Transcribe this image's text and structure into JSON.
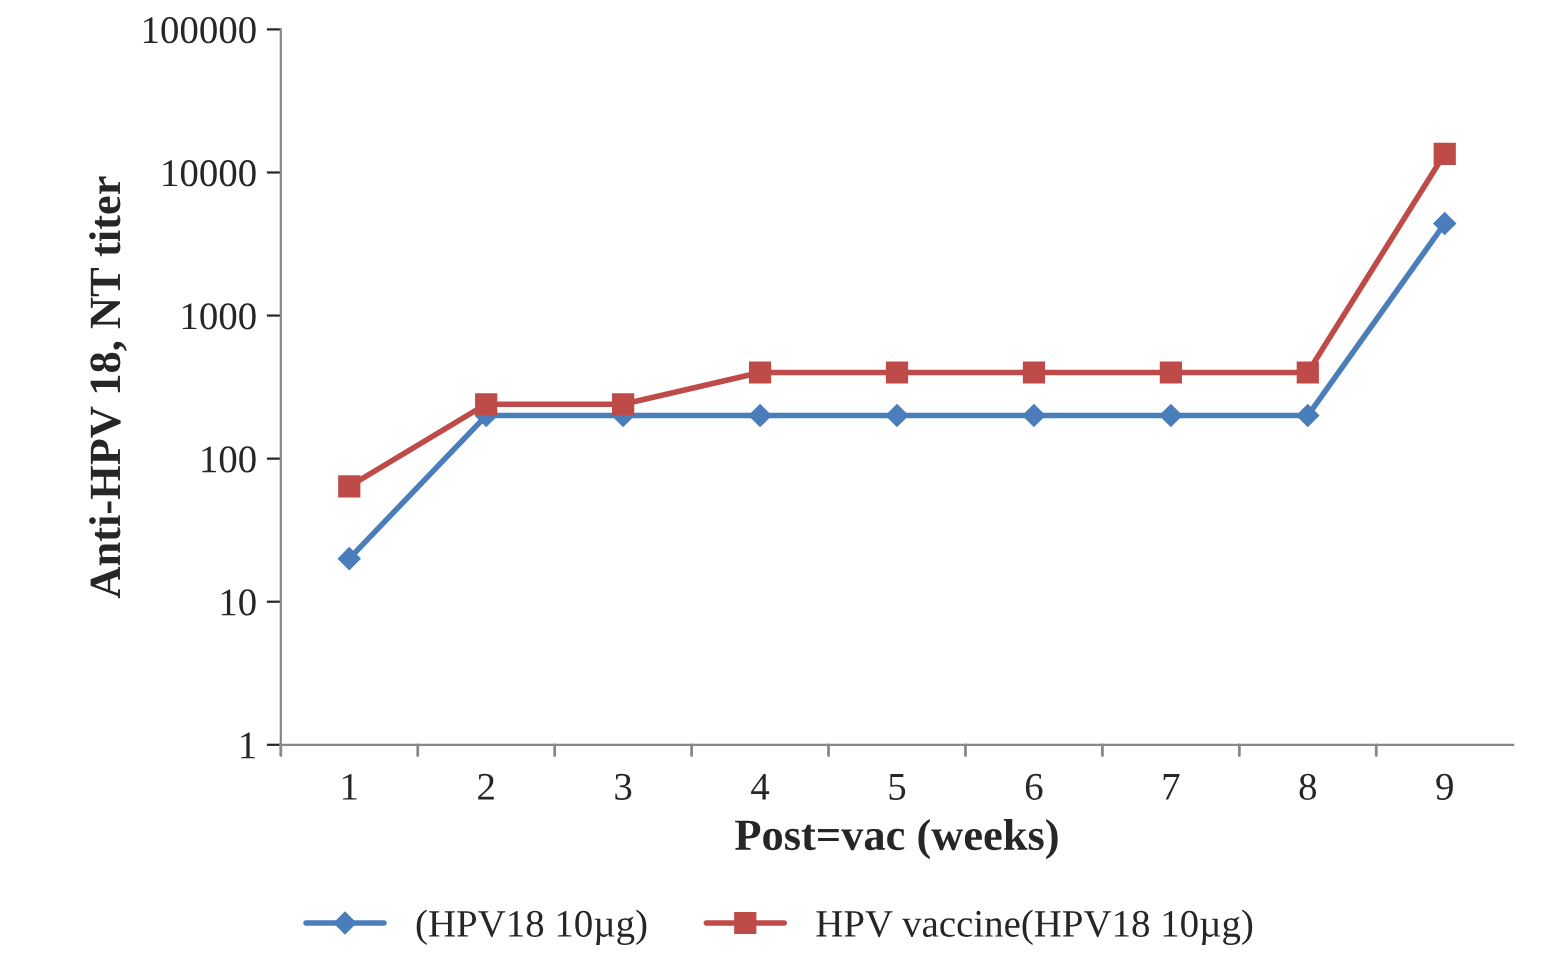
{
  "chart_data": {
    "type": "line",
    "xlabel": "Post=vac (weeks)",
    "ylabel": "Anti-HPV 18, NT titer",
    "categories": [
      "1",
      "2",
      "3",
      "4",
      "5",
      "6",
      "7",
      "8",
      "9"
    ],
    "series": [
      {
        "name": "(HPV18 10µg)",
        "color": "#4a7ebb",
        "marker": "diamond",
        "values": [
          20,
          200,
          200,
          200,
          200,
          200,
          200,
          200,
          4400
        ]
      },
      {
        "name": "HPV vaccine(HPV18 10µg)",
        "color": "#be4b48",
        "marker": "square",
        "values": [
          64,
          240,
          240,
          400,
          400,
          400,
          400,
          400,
          13500
        ]
      }
    ],
    "log": true,
    "ylim": [
      1,
      100000
    ],
    "yticks": [
      1,
      10,
      100,
      1000,
      10000,
      100000
    ],
    "grid": false,
    "legend": "bottom",
    "line_style": "solid"
  }
}
